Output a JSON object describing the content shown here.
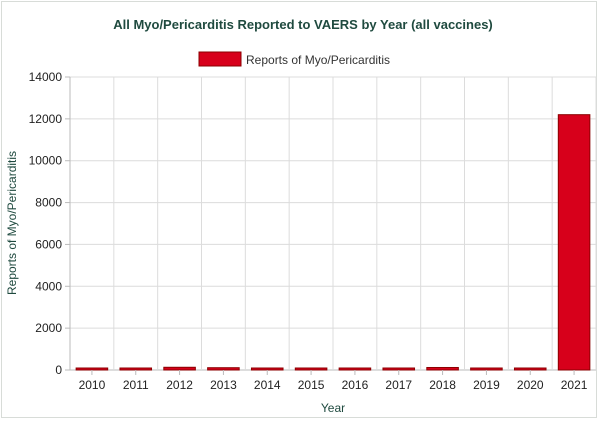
{
  "chart_data": {
    "type": "bar",
    "title": "All Myo/Pericarditis Reported to VAERS by Year (all vaccines)",
    "xlabel": "Year",
    "ylabel": "Reports of Myo/Pericarditis",
    "categories": [
      "2010",
      "2011",
      "2012",
      "2013",
      "2014",
      "2015",
      "2016",
      "2017",
      "2018",
      "2019",
      "2020",
      "2021"
    ],
    "series": [
      {
        "name": "Reports of Myo/Pericarditis",
        "values": [
          60,
          70,
          130,
          110,
          70,
          30,
          60,
          60,
          120,
          80,
          70,
          12200
        ],
        "color": "#d7001b"
      }
    ],
    "ylim": [
      0,
      14000
    ],
    "yticks": [
      0,
      2000,
      4000,
      6000,
      8000,
      10000,
      12000,
      14000
    ],
    "grid": true,
    "legend_position": "top-center"
  }
}
